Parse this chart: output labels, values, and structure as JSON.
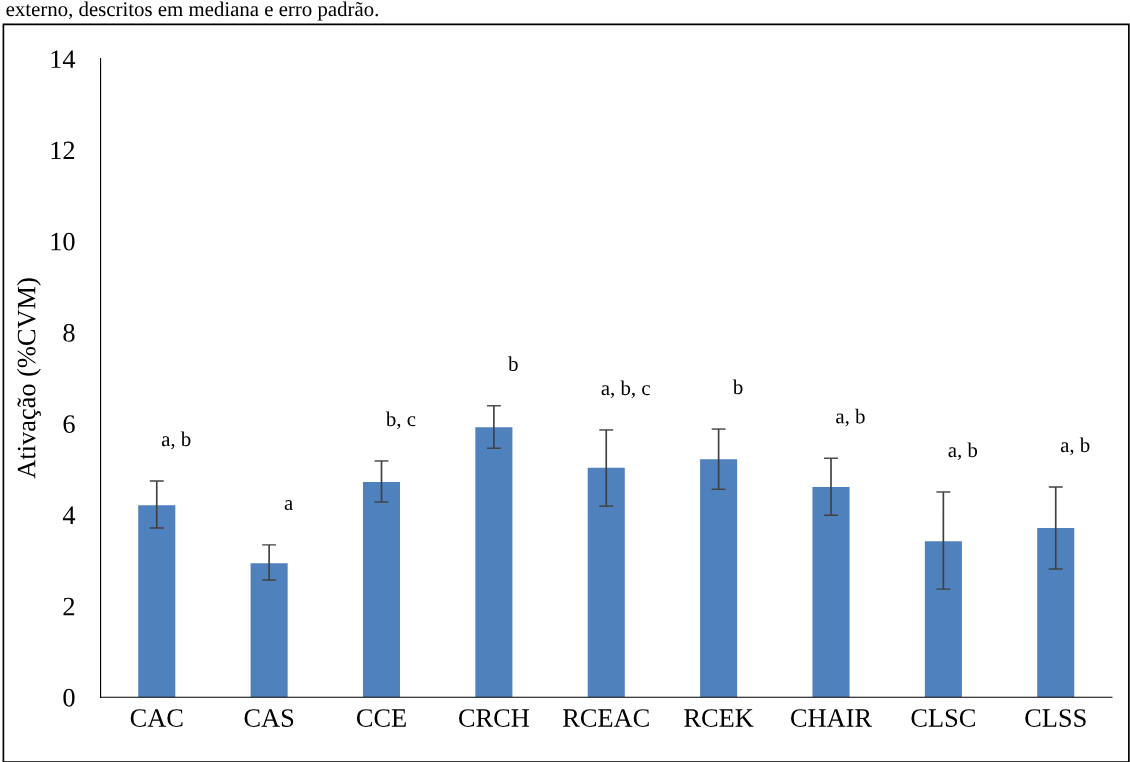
{
  "chart_data": {
    "type": "bar",
    "ylabel": "Ativação (%CVM)",
    "categories": [
      "CAC",
      "CAS",
      "CCE",
      "CRCH",
      "RCEAC",
      "RCEK",
      "CHAIR",
      "CLSC",
      "CLSS"
    ],
    "values": [
      4.21,
      2.94,
      4.72,
      5.92,
      5.03,
      5.22,
      4.61,
      3.42,
      3.71
    ],
    "errors": [
      [
        3.71,
        4.74
      ],
      [
        2.57,
        3.34
      ],
      [
        4.28,
        5.18
      ],
      [
        5.46,
        6.39
      ],
      [
        4.19,
        5.86
      ],
      [
        4.56,
        5.88
      ],
      [
        3.99,
        5.24
      ],
      [
        2.37,
        4.5
      ],
      [
        2.81,
        4.61
      ]
    ],
    "color": "#4f81bd",
    "ylim": [
      0,
      14
    ],
    "yticks": [
      0,
      2,
      4,
      6,
      8,
      10,
      12,
      14
    ],
    "grid": false,
    "legend": false,
    "annotations": [
      "externo, descritos em mediana e erro padrão.",
      "a, b",
      "a",
      "b, c",
      "b",
      "a, b, c",
      "b",
      "a, b",
      "a, b",
      "a, b"
    ]
  }
}
